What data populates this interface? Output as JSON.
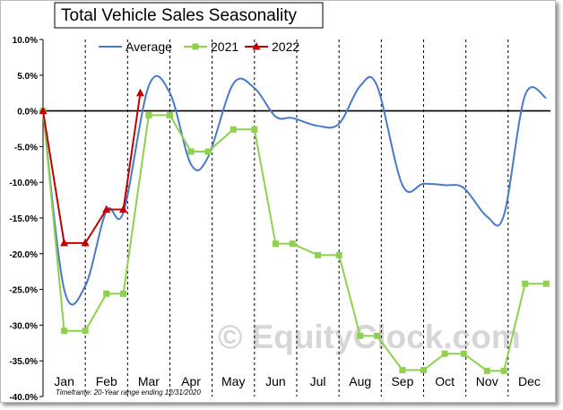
{
  "chart_data": {
    "type": "line",
    "title": "Total Vehicle Sales Seasonality",
    "categories": [
      "Jan",
      "Feb",
      "Mar",
      "Apr",
      "May",
      "Jun",
      "Jul",
      "Aug",
      "Sep",
      "Oct",
      "Nov",
      "Dec"
    ],
    "yticks": [
      "10.0%",
      "5.0%",
      "0.0%",
      "-5.0%",
      "-10.0%",
      "-15.0%",
      "-20.0%",
      "-25.0%",
      "-30.0%",
      "-35.0%",
      "-40.0%"
    ],
    "ylim": [
      -40,
      10
    ],
    "legend": {
      "position": "top"
    },
    "grid": {
      "vertical": "dashed-month-boundaries",
      "horizontal": "none",
      "zero_line": true
    },
    "series": [
      {
        "name": "Average",
        "color": "#4a7ac7",
        "marker": "none",
        "smooth": true,
        "points": [
          [
            0.0,
            0.0
          ],
          [
            0.5,
            -25.0
          ],
          [
            1.0,
            -24.5
          ],
          [
            1.5,
            -14.0
          ],
          [
            1.9,
            -14.2
          ],
          [
            2.5,
            3.5
          ],
          [
            3.0,
            2.5
          ],
          [
            3.5,
            -7.5
          ],
          [
            3.9,
            -6.5
          ],
          [
            4.5,
            3.8
          ],
          [
            5.0,
            3.2
          ],
          [
            5.5,
            -0.8
          ],
          [
            5.9,
            -1.0
          ],
          [
            6.5,
            -2.1
          ],
          [
            7.0,
            -1.8
          ],
          [
            7.5,
            3.5
          ],
          [
            7.9,
            3.5
          ],
          [
            8.5,
            -10.4
          ],
          [
            9.0,
            -10.2
          ],
          [
            9.5,
            -10.4
          ],
          [
            9.95,
            -10.8
          ],
          [
            10.5,
            -14.8
          ],
          [
            10.9,
            -14.6
          ],
          [
            11.4,
            2.2
          ],
          [
            11.9,
            1.8
          ]
        ]
      },
      {
        "name": "2021",
        "color": "#8fd14f",
        "marker": "square",
        "points": [
          [
            0.0,
            0.0
          ],
          [
            0.5,
            -30.8
          ],
          [
            1.0,
            -30.8
          ],
          [
            1.5,
            -25.6
          ],
          [
            1.9,
            -25.6
          ],
          [
            2.5,
            -0.6
          ],
          [
            3.0,
            -0.6
          ],
          [
            3.5,
            -5.7
          ],
          [
            3.9,
            -5.7
          ],
          [
            4.5,
            -2.6
          ],
          [
            5.0,
            -2.6
          ],
          [
            5.5,
            -18.6
          ],
          [
            5.9,
            -18.6
          ],
          [
            6.5,
            -20.2
          ],
          [
            7.0,
            -20.2
          ],
          [
            7.5,
            -31.5
          ],
          [
            7.9,
            -31.5
          ],
          [
            8.5,
            -36.3
          ],
          [
            9.0,
            -36.3
          ],
          [
            9.5,
            -34.0
          ],
          [
            9.95,
            -34.0
          ],
          [
            10.5,
            -36.4
          ],
          [
            10.9,
            -36.4
          ],
          [
            11.4,
            -24.2
          ],
          [
            11.9,
            -24.2
          ]
        ]
      },
      {
        "name": "2022",
        "color": "#c00000",
        "marker": "triangle",
        "points": [
          [
            0.0,
            0.0
          ],
          [
            0.5,
            -18.5
          ],
          [
            1.0,
            -18.5
          ],
          [
            1.5,
            -13.8
          ],
          [
            1.9,
            -13.8
          ],
          [
            2.3,
            2.5
          ]
        ]
      }
    ],
    "watermark": "© EquityClock.com",
    "footnote": "Timeframe: 20-Year range ending 12/31/2020"
  }
}
